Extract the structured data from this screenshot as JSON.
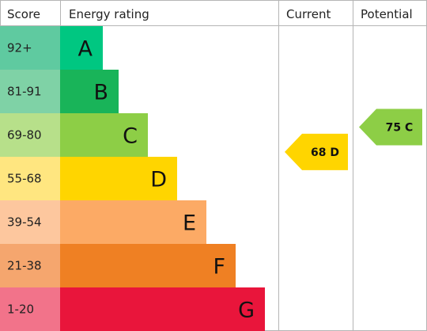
{
  "headers": {
    "score": "Score",
    "rating": "Energy rating",
    "current": "Current",
    "potential": "Potential"
  },
  "chart_data": {
    "type": "bar",
    "categories": [
      "A",
      "B",
      "C",
      "D",
      "E",
      "F",
      "G"
    ],
    "bands": [
      {
        "letter": "A",
        "range": "92+",
        "score_color": "#5fcaa0",
        "bar_color": "#00c781"
      },
      {
        "letter": "B",
        "range": "81-91",
        "score_color": "#7fd2a6",
        "bar_color": "#19b459"
      },
      {
        "letter": "C",
        "range": "69-80",
        "score_color": "#b7e08a",
        "bar_color": "#8dce46"
      },
      {
        "letter": "D",
        "range": "55-68",
        "score_color": "#ffe680",
        "bar_color": "#ffd500"
      },
      {
        "letter": "E",
        "range": "39-54",
        "score_color": "#fdc79e",
        "bar_color": "#fcaa65"
      },
      {
        "letter": "F",
        "range": "21-38",
        "score_color": "#f5a66e",
        "bar_color": "#ef8023"
      },
      {
        "letter": "G",
        "range": "1-20",
        "score_color": "#f2738a",
        "bar_color": "#e9153b"
      }
    ],
    "current": {
      "value": 68,
      "band": "D",
      "label": "68 D",
      "color": "#ffd500"
    },
    "potential": {
      "value": 75,
      "band": "C",
      "label": "75 C",
      "color": "#8dce46"
    }
  }
}
